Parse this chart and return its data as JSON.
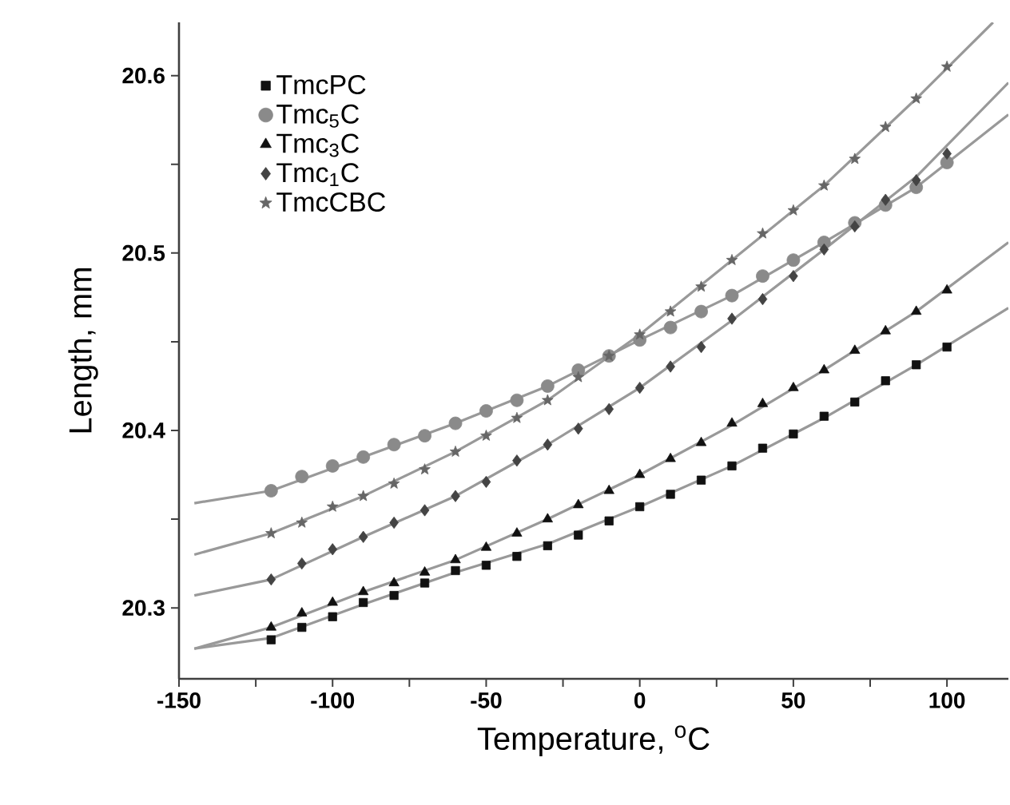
{
  "chart_data": {
    "type": "scatter",
    "xlabel": "Temperature, $^{o}$C",
    "ylabel": "Length, mm",
    "xlim": [
      -150,
      120
    ],
    "ylim": [
      20.26,
      20.63
    ],
    "xticks": [
      -150,
      {
        "value": -125,
        "label": null
      },
      -100,
      {
        "value": -75,
        "label": null
      },
      -50,
      {
        "value": -25,
        "label": null
      },
      0,
      {
        "value": 25,
        "label": null
      },
      50,
      {
        "value": 75,
        "label": null
      },
      100
    ],
    "yticks": [
      20.3,
      {
        "value": 20.35,
        "label": null
      },
      20.4,
      {
        "value": 20.45,
        "label": null
      },
      20.5,
      {
        "value": 20.55,
        "label": null
      },
      20.6
    ],
    "grid": false,
    "legend": "top left",
    "x": [
      -120,
      -110,
      -100,
      -90,
      -80,
      -70,
      -60,
      -50,
      -40,
      -30,
      -20,
      -10,
      0,
      10,
      20,
      30,
      40,
      50,
      60,
      70,
      80,
      90,
      100
    ],
    "series": [
      {
        "name": "TmcPC",
        "color": "#111111",
        "marker": "square",
        "values": [
          20.282,
          20.289,
          20.295,
          20.303,
          20.307,
          20.314,
          20.321,
          20.324,
          20.329,
          20.335,
          20.341,
          20.349,
          20.357,
          20.364,
          20.372,
          20.38,
          20.39,
          20.398,
          20.408,
          20.416,
          20.428,
          20.437,
          20.447
        ]
      },
      {
        "name": "Tmc$_{5}$C",
        "color": "#8a8a8a",
        "marker": "circle",
        "values": [
          20.366,
          20.374,
          20.38,
          20.385,
          20.392,
          20.397,
          20.404,
          20.411,
          20.417,
          20.425,
          20.434,
          20.442,
          20.451,
          20.458,
          20.467,
          20.476,
          20.487,
          20.496,
          20.506,
          20.517,
          20.527,
          20.537,
          20.551
        ]
      },
      {
        "name": "Tmc$_{3}$C",
        "color": "#111111",
        "marker": "triangle",
        "values": [
          20.289,
          20.297,
          20.303,
          20.309,
          20.314,
          20.32,
          20.327,
          20.334,
          20.342,
          20.35,
          20.358,
          20.366,
          20.375,
          20.384,
          20.393,
          20.404,
          20.415,
          20.424,
          20.434,
          20.445,
          20.456,
          20.467,
          20.479
        ]
      },
      {
        "name": "Tmc$_{1}$C",
        "color": "#444444",
        "marker": "diamond",
        "values": [
          20.316,
          20.325,
          20.333,
          20.34,
          20.348,
          20.355,
          20.363,
          20.371,
          20.383,
          20.392,
          20.401,
          20.412,
          20.424,
          20.436,
          20.447,
          20.463,
          20.474,
          20.487,
          20.502,
          20.515,
          20.53,
          20.541,
          20.556
        ]
      },
      {
        "name": "TmcCBC",
        "color": "#666666",
        "marker": "star",
        "values": [
          20.342,
          20.348,
          20.357,
          20.363,
          20.37,
          20.378,
          20.388,
          20.397,
          20.407,
          20.417,
          20.43,
          20.442,
          20.454,
          20.467,
          20.481,
          20.496,
          20.511,
          20.524,
          20.538,
          20.553,
          20.571,
          20.587,
          20.605
        ]
      },
      {
        "type": "line",
        "color": "#999999",
        "x": [
          -145,
          -120,
          -90,
          -60,
          -30,
          0,
          30,
          60,
          90,
          120
        ],
        "values": [
          20.277,
          20.283,
          20.302,
          20.32,
          20.336,
          20.357,
          20.38,
          20.407,
          20.437,
          20.469
        ]
      },
      {
        "type": "line",
        "color": "#999999",
        "x": [
          -145,
          -120,
          -90,
          -60,
          -30,
          0,
          30,
          60,
          90,
          120
        ],
        "values": [
          20.359,
          20.366,
          20.385,
          20.404,
          20.425,
          20.451,
          20.476,
          20.506,
          20.537,
          20.578
        ]
      },
      {
        "type": "line",
        "color": "#999999",
        "x": [
          -145,
          -120,
          -90,
          -60,
          -30,
          0,
          30,
          60,
          90,
          120
        ],
        "values": [
          20.277,
          20.289,
          20.309,
          20.327,
          20.35,
          20.375,
          20.403,
          20.434,
          20.467,
          20.506
        ]
      },
      {
        "type": "line",
        "color": "#999999",
        "x": [
          -145,
          -120,
          -90,
          -60,
          -30,
          0,
          30,
          60,
          90,
          120
        ],
        "values": [
          20.307,
          20.316,
          20.34,
          20.363,
          20.392,
          20.424,
          20.462,
          20.502,
          20.543,
          20.596
        ]
      },
      {
        "type": "line",
        "color": "#999999",
        "x": [
          -145,
          -120,
          -90,
          -60,
          -30,
          0,
          30,
          60,
          90,
          115
        ],
        "values": [
          20.33,
          20.342,
          20.363,
          20.388,
          20.417,
          20.454,
          20.496,
          20.538,
          20.587,
          20.63
        ]
      }
    ]
  }
}
